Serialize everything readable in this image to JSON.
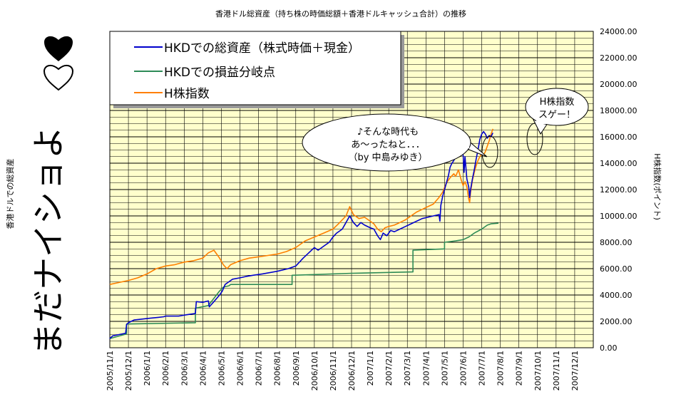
{
  "chart_data": {
    "type": "line",
    "title": "香港ドル総資産（持ち株の時価総額＋香港ドルキャッシュ合計）の推移",
    "ylabel_left": "香港ドルでの総資産",
    "ylabel_right": "H株指数(ポイント)",
    "big_side_text": "まだナイショよ",
    "ylim": [
      0,
      24000
    ],
    "yticks": [
      "0.00",
      "2000.00",
      "4000.00",
      "6000.00",
      "8000.00",
      "10000.00",
      "12000.00",
      "14000.00",
      "16000.00",
      "18000.00",
      "20000.00",
      "22000.00",
      "24000.00"
    ],
    "x_categories": [
      "2005/11/1",
      "2005/12/1",
      "2006/1/1",
      "2006/2/1",
      "2006/3/1",
      "2006/4/1",
      "2006/5/1",
      "2006/6/1",
      "2006/7/1",
      "2006/8/1",
      "2006/9/1",
      "2006/10/1",
      "2006/11/1",
      "2006/12/1",
      "2007/1/1",
      "2007/2/1",
      "2007/3/1",
      "2007/4/1",
      "2007/5/1",
      "2007/6/1",
      "2007/7/1",
      "2007/8/1",
      "2007/9/1",
      "2007/10/1",
      "2007/11/1",
      "2007/12/1"
    ],
    "grid": true,
    "legend_position": "top-left",
    "series": [
      {
        "name": "HKDでの総資産（株式時価＋現金）",
        "color": "#0000cc",
        "points": [
          [
            0,
            700
          ],
          [
            0.15,
            900
          ],
          [
            0.5,
            1000
          ],
          [
            0.85,
            1100
          ],
          [
            0.9,
            1750
          ],
          [
            1.0,
            1900
          ],
          [
            1.3,
            2100
          ],
          [
            1.6,
            2150
          ],
          [
            1.9,
            2200
          ],
          [
            2.2,
            2250
          ],
          [
            2.6,
            2300
          ],
          [
            2.9,
            2350
          ],
          [
            3.0,
            2400
          ],
          [
            3.7,
            2400
          ],
          [
            4.1,
            2500
          ],
          [
            4.6,
            2600
          ],
          [
            4.65,
            3500
          ],
          [
            5.0,
            3450
          ],
          [
            5.3,
            3550
          ],
          [
            5.35,
            3100
          ],
          [
            5.6,
            3500
          ],
          [
            5.9,
            4000
          ],
          [
            6.05,
            4300
          ],
          [
            6.2,
            4800
          ],
          [
            6.4,
            5000
          ],
          [
            6.6,
            5200
          ],
          [
            7.0,
            5300
          ],
          [
            7.3,
            5400
          ],
          [
            7.7,
            5500
          ],
          [
            8.2,
            5600
          ],
          [
            8.6,
            5700
          ],
          [
            9.0,
            5800
          ],
          [
            9.3,
            5900
          ],
          [
            9.6,
            6000
          ],
          [
            10.0,
            6200
          ],
          [
            10.4,
            6800
          ],
          [
            10.7,
            7200
          ],
          [
            11.0,
            7600
          ],
          [
            11.2,
            7400
          ],
          [
            11.5,
            7700
          ],
          [
            11.8,
            8000
          ],
          [
            12.0,
            8400
          ],
          [
            12.2,
            8700
          ],
          [
            12.5,
            9000
          ],
          [
            12.7,
            9500
          ],
          [
            12.9,
            10000
          ],
          [
            13.1,
            9500
          ],
          [
            13.3,
            9200
          ],
          [
            13.5,
            9500
          ],
          [
            13.7,
            9300
          ],
          [
            14.0,
            9100
          ],
          [
            14.2,
            9000
          ],
          [
            14.4,
            8500
          ],
          [
            14.55,
            8200
          ],
          [
            14.7,
            8700
          ],
          [
            14.9,
            8500
          ],
          [
            15.1,
            8900
          ],
          [
            15.3,
            8800
          ],
          [
            15.6,
            9000
          ],
          [
            15.9,
            9200
          ],
          [
            16.2,
            9400
          ],
          [
            16.5,
            9600
          ],
          [
            16.8,
            9800
          ],
          [
            17.1,
            9900
          ],
          [
            17.4,
            10000
          ],
          [
            17.7,
            10100
          ],
          [
            17.75,
            9600
          ],
          [
            17.8,
            10800
          ],
          [
            17.9,
            11500
          ],
          [
            18.0,
            12000
          ],
          [
            18.1,
            12500
          ],
          [
            18.2,
            13000
          ],
          [
            18.3,
            13700
          ],
          [
            18.4,
            14000
          ],
          [
            18.5,
            14200
          ],
          [
            18.6,
            14500
          ],
          [
            18.7,
            15200
          ],
          [
            18.75,
            15800
          ],
          [
            18.8,
            14500
          ],
          [
            18.9,
            15000
          ],
          [
            19.0,
            14600
          ],
          [
            19.05,
            13300
          ],
          [
            19.1,
            14500
          ],
          [
            19.2,
            12800
          ],
          [
            19.3,
            12200
          ],
          [
            19.35,
            11400
          ],
          [
            19.4,
            12000
          ],
          [
            19.5,
            12800
          ],
          [
            19.6,
            13500
          ],
          [
            19.7,
            14300
          ],
          [
            19.8,
            15000
          ],
          [
            19.9,
            15800
          ],
          [
            20.0,
            16200
          ],
          [
            20.1,
            16400
          ],
          [
            20.2,
            16200
          ],
          [
            20.3,
            15900
          ],
          [
            20.4,
            16100
          ],
          [
            20.5,
            16000
          ],
          [
            20.6,
            16300
          ]
        ]
      },
      {
        "name": "HKDでの損益分岐点",
        "color": "#2e8b57",
        "points": [
          [
            0,
            700
          ],
          [
            0.9,
            1050
          ],
          [
            0.9,
            1800
          ],
          [
            4.6,
            1900
          ],
          [
            4.6,
            3000
          ],
          [
            5.3,
            3200
          ],
          [
            5.9,
            4300
          ],
          [
            6.1,
            4600
          ],
          [
            6.4,
            4700
          ],
          [
            6.5,
            4800
          ],
          [
            9.8,
            4800
          ],
          [
            9.8,
            5500
          ],
          [
            11.0,
            5550
          ],
          [
            13.0,
            5650
          ],
          [
            16.3,
            5750
          ],
          [
            16.3,
            7400
          ],
          [
            18.0,
            7500
          ],
          [
            18.0,
            8000
          ],
          [
            18.6,
            8100
          ],
          [
            19.0,
            8200
          ],
          [
            19.3,
            8400
          ],
          [
            19.6,
            8700
          ],
          [
            20.0,
            9000
          ],
          [
            20.3,
            9300
          ],
          [
            20.5,
            9400
          ],
          [
            20.9,
            9450
          ]
        ]
      },
      {
        "name": "H株指数",
        "color": "#ff7f00",
        "points": [
          [
            0,
            4800
          ],
          [
            0.5,
            4950
          ],
          [
            1.0,
            5100
          ],
          [
            1.5,
            5300
          ],
          [
            2.0,
            5600
          ],
          [
            2.5,
            6000
          ],
          [
            3.0,
            6200
          ],
          [
            3.5,
            6300
          ],
          [
            4.0,
            6500
          ],
          [
            4.5,
            6600
          ],
          [
            5.0,
            6800
          ],
          [
            5.3,
            7200
          ],
          [
            5.6,
            7400
          ],
          [
            5.9,
            6800
          ],
          [
            6.1,
            6300
          ],
          [
            6.3,
            6000
          ],
          [
            6.5,
            6300
          ],
          [
            7.0,
            6600
          ],
          [
            7.5,
            6800
          ],
          [
            8.0,
            6900
          ],
          [
            8.5,
            7000
          ],
          [
            9.0,
            7100
          ],
          [
            9.5,
            7300
          ],
          [
            10.0,
            7600
          ],
          [
            10.5,
            8100
          ],
          [
            11.0,
            8400
          ],
          [
            11.5,
            8700
          ],
          [
            12.0,
            9000
          ],
          [
            12.3,
            9400
          ],
          [
            12.7,
            10000
          ],
          [
            12.9,
            10700
          ],
          [
            13.1,
            10100
          ],
          [
            13.4,
            9800
          ],
          [
            13.7,
            9900
          ],
          [
            14.0,
            9600
          ],
          [
            14.2,
            9400
          ],
          [
            14.4,
            9000
          ],
          [
            14.6,
            8800
          ],
          [
            14.8,
            9100
          ],
          [
            15.0,
            9200
          ],
          [
            15.3,
            9300
          ],
          [
            15.6,
            9500
          ],
          [
            15.9,
            9700
          ],
          [
            16.2,
            10000
          ],
          [
            16.5,
            10300
          ],
          [
            16.8,
            10500
          ],
          [
            17.1,
            10700
          ],
          [
            17.4,
            10900
          ],
          [
            17.7,
            11400
          ],
          [
            17.9,
            11800
          ],
          [
            18.1,
            12500
          ],
          [
            18.3,
            12900
          ],
          [
            18.5,
            13200
          ],
          [
            18.6,
            13000
          ],
          [
            18.75,
            13500
          ],
          [
            18.9,
            12700
          ],
          [
            19.0,
            12300
          ],
          [
            19.1,
            12600
          ],
          [
            19.2,
            12200
          ],
          [
            19.3,
            11300
          ],
          [
            19.35,
            11000
          ],
          [
            19.4,
            11800
          ],
          [
            19.5,
            12700
          ],
          [
            19.6,
            13300
          ],
          [
            19.7,
            13800
          ],
          [
            19.8,
            14200
          ],
          [
            19.9,
            14500
          ],
          [
            20.0,
            14700
          ],
          [
            20.1,
            14600
          ],
          [
            20.2,
            14900
          ],
          [
            20.3,
            15300
          ],
          [
            20.4,
            15700
          ],
          [
            20.5,
            16200
          ],
          [
            20.6,
            16600
          ]
        ]
      }
    ],
    "annotations": [
      {
        "lines": [
          "♪そんな時代も",
          "あ〜ったねと．．．",
          "（by 中島みゆき）"
        ]
      },
      {
        "lines": [
          "H株指数",
          "スゲー！"
        ]
      }
    ]
  }
}
